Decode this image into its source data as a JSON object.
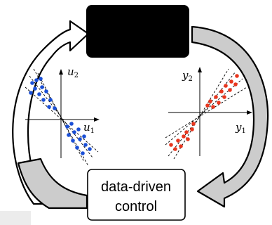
{
  "diagram": {
    "system_box": {
      "fill": "#000000",
      "label": ""
    },
    "control_box": {
      "line1": "data-driven",
      "line2": "control"
    },
    "input_plot": {
      "axis_label": "u",
      "axis_x_sub": "1",
      "axis_y_sub": "2",
      "point_color": "#1a4fd6"
    },
    "output_plot": {
      "axis_label": "y",
      "axis_x_sub": "1",
      "axis_y_sub": "2",
      "point_color": "#e8361e"
    },
    "colors": {
      "arrow_outline": "#000000",
      "arrow_fill_white": "#ffffff",
      "arrow_fill_gray": "#cccccc",
      "corner_patch": "#ececec"
    }
  }
}
